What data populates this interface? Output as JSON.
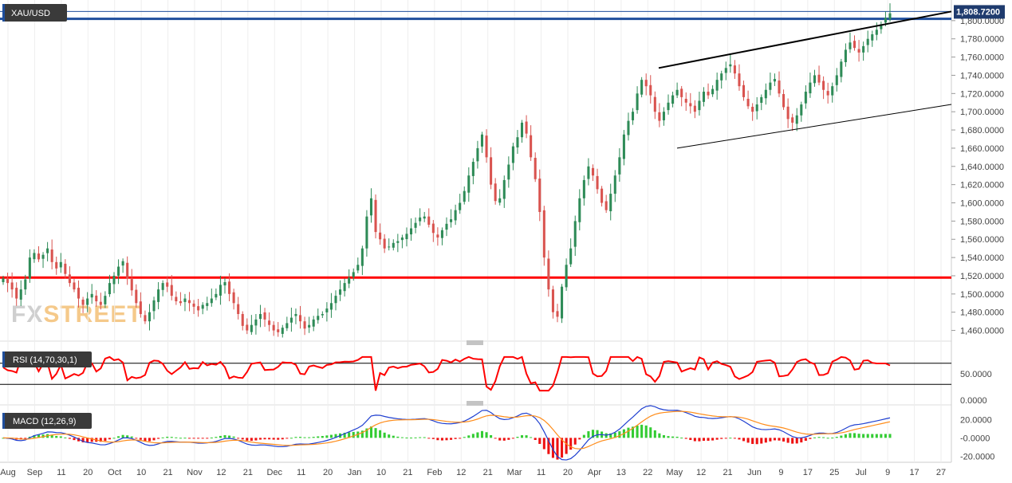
{
  "symbol": "XAU/USD",
  "last_price": "1,808.7200",
  "watermark": {
    "left": "FX",
    "right": "STREET"
  },
  "colors": {
    "up": "#2e8b57",
    "down": "#d9534f",
    "support": "#ff0000",
    "resistance": "#1f4e9c",
    "channel": "#000000",
    "rsi": "#ff0000",
    "macd": "#1f3fd0",
    "signal": "#ff8c1a",
    "hist_up": "#33cc33",
    "hist_down": "#ee1111",
    "watermark_fx": "#cfcfcf",
    "watermark_street": "#f5c98a"
  },
  "chart_data": [
    {
      "type": "candlestick",
      "title": "XAU/USD",
      "ylim": [
        1450,
        1820
      ],
      "y_ticks": [
        "1,460.0000",
        "1,480.0000",
        "1,500.0000",
        "1,520.0000",
        "1,540.0000",
        "1,560.0000",
        "1,580.0000",
        "1,600.0000",
        "1,620.0000",
        "1,640.0000",
        "1,660.0000",
        "1,680.0000",
        "1,700.0000",
        "1,720.0000",
        "1,740.0000",
        "1,760.0000",
        "1,780.0000",
        "1,800.0000"
      ],
      "x_ticks": [
        "Aug",
        "Sep",
        "11",
        "20",
        "Oct",
        "10",
        "21",
        "Nov",
        "12",
        "21",
        "Dec",
        "11",
        "20",
        "Jan",
        "10",
        "21",
        "Feb",
        "12",
        "21",
        "Mar",
        "11",
        "20",
        "Apr",
        "13",
        "22",
        "May",
        "12",
        "21",
        "Jun",
        "9",
        "17",
        "25",
        "Jul",
        "9",
        "17",
        "27"
      ],
      "horizontal_levels": [
        {
          "name": "support",
          "value": 1518
        },
        {
          "name": "resistance",
          "value": 1802
        },
        {
          "name": "resistance-thin",
          "value": 1810
        }
      ],
      "close_series": [
        1517,
        1512,
        1505,
        1495,
        1505,
        1516,
        1540,
        1545,
        1538,
        1543,
        1550,
        1535,
        1528,
        1535,
        1522,
        1512,
        1505,
        1495,
        1488,
        1495,
        1500,
        1492,
        1488,
        1498,
        1512,
        1520,
        1530,
        1536,
        1517,
        1504,
        1490,
        1478,
        1470,
        1480,
        1493,
        1505,
        1512,
        1508,
        1498,
        1492,
        1490,
        1495,
        1490,
        1486,
        1482,
        1488,
        1490,
        1495,
        1500,
        1510,
        1513,
        1500,
        1490,
        1478,
        1465,
        1460,
        1466,
        1472,
        1478,
        1472,
        1466,
        1460,
        1458,
        1463,
        1468,
        1474,
        1478,
        1470,
        1462,
        1466,
        1472,
        1476,
        1478,
        1484,
        1490,
        1498,
        1505,
        1512,
        1518,
        1524,
        1532,
        1550,
        1585,
        1605,
        1568,
        1560,
        1550,
        1552,
        1556,
        1558,
        1562,
        1566,
        1572,
        1578,
        1584,
        1585,
        1576,
        1567,
        1562,
        1570,
        1577,
        1582,
        1592,
        1600,
        1613,
        1630,
        1645,
        1660,
        1675,
        1650,
        1620,
        1602,
        1605,
        1625,
        1642,
        1662,
        1672,
        1688,
        1676,
        1650,
        1626,
        1590,
        1540,
        1505,
        1480,
        1475,
        1508,
        1532,
        1550,
        1580,
        1605,
        1625,
        1640,
        1630,
        1615,
        1600,
        1592,
        1610,
        1630,
        1650,
        1675,
        1690,
        1700,
        1720,
        1735,
        1728,
        1718,
        1700,
        1690,
        1700,
        1710,
        1718,
        1724,
        1716,
        1710,
        1706,
        1700,
        1712,
        1722,
        1718,
        1725,
        1735,
        1742,
        1748,
        1752,
        1742,
        1728,
        1716,
        1706,
        1700,
        1708,
        1716,
        1724,
        1732,
        1736,
        1720,
        1705,
        1692,
        1688,
        1696,
        1708,
        1722,
        1732,
        1740,
        1732,
        1724,
        1718,
        1728,
        1740,
        1755,
        1768,
        1776,
        1770,
        1765,
        1772,
        1780,
        1785,
        1790,
        1796,
        1803,
        1808
      ],
      "rsi": {
        "label": "RSI (14,70,30,1)",
        "ylim": [
          0,
          100
        ],
        "y_ticks": [
          "50.0000",
          "0.0000"
        ],
        "levels": [
          70,
          30
        ]
      },
      "macd": {
        "label": "MACD (12,26,9)",
        "ylim": [
          -25,
          30
        ],
        "y_ticks": [
          "20.0000",
          "-0.0000",
          "-20.0000"
        ]
      }
    }
  ]
}
